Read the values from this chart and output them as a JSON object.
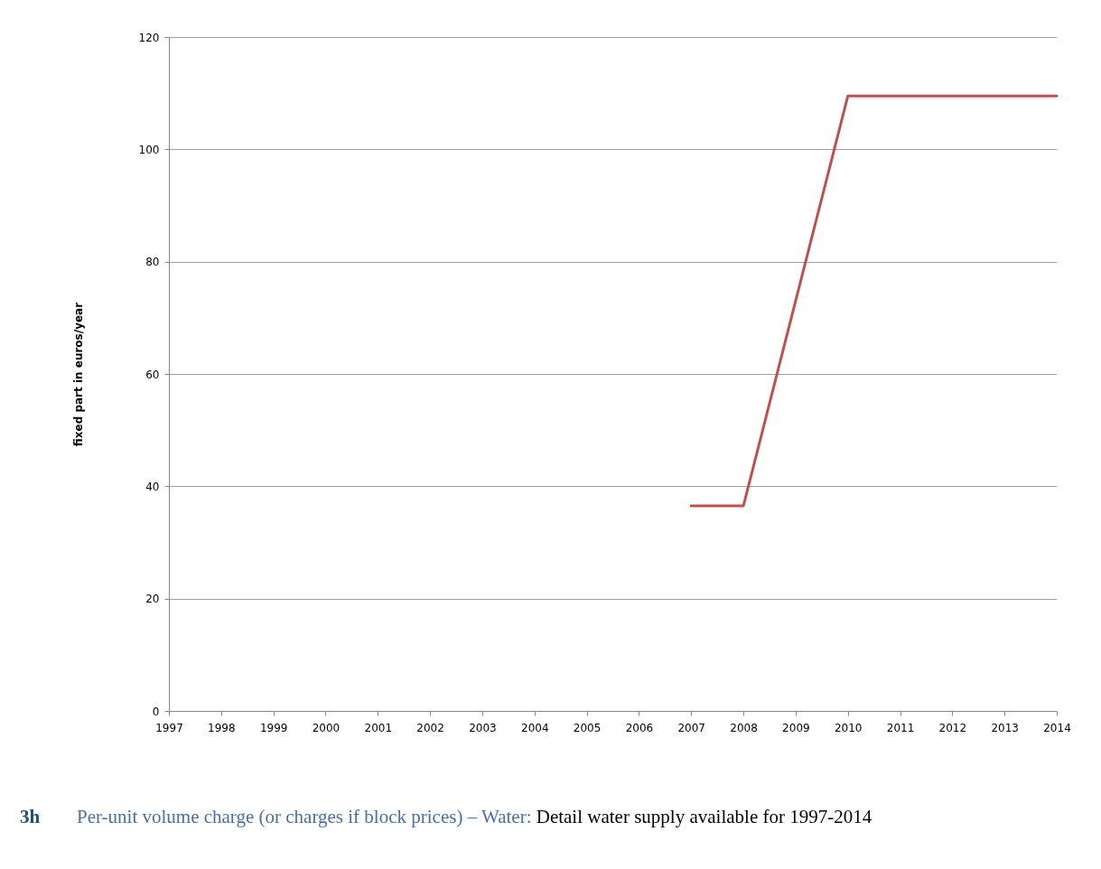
{
  "chart_data": {
    "type": "line",
    "ylabel": "fixed part in euros/year",
    "x": [
      2007,
      2008,
      2009,
      2010,
      2011,
      2012,
      2013,
      2014
    ],
    "series": [
      {
        "color": "#c0504d",
        "values": [
          36.5,
          36.5,
          73,
          109.5,
          109.5,
          109.5,
          109.5,
          109.5
        ]
      }
    ],
    "xlim": [
      1997,
      2014
    ],
    "xticks": [
      1997,
      1998,
      1999,
      2000,
      2001,
      2002,
      2003,
      2004,
      2005,
      2006,
      2007,
      2008,
      2009,
      2010,
      2011,
      2012,
      2013,
      2014
    ],
    "ylim": [
      0,
      120
    ],
    "yticks": [
      0,
      20,
      40,
      60,
      80,
      100,
      120
    ],
    "grid": "y",
    "legend": false,
    "annotations": [
      "3h",
      "Per-unit volume charge (or charges if block prices) – Water:",
      "Detail water supply available for 1997-2014"
    ]
  }
}
